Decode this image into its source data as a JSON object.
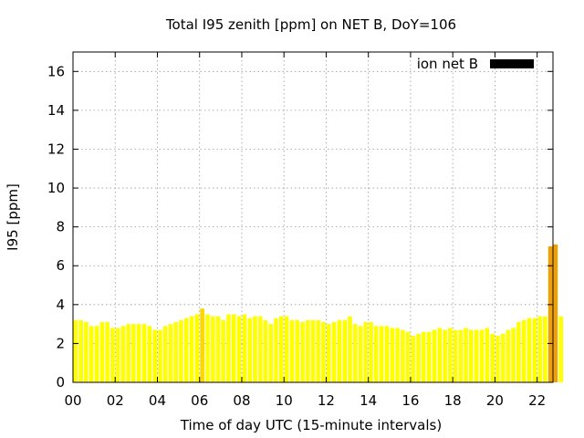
{
  "chart_data": {
    "type": "bar",
    "title": "Total I95 zenith [ppm] on NET B, DoY=106",
    "xlabel": "Time of day UTC (15-minute intervals)",
    "ylabel": "I95 [ppm]",
    "xlim": [
      0,
      22.75
    ],
    "ylim": [
      0,
      17
    ],
    "grid": true,
    "legend_position": "top-right",
    "x_ticks": [
      {
        "value": 0,
        "label": "00"
      },
      {
        "value": 2,
        "label": "02"
      },
      {
        "value": 4,
        "label": "04"
      },
      {
        "value": 6,
        "label": "06"
      },
      {
        "value": 8,
        "label": "08"
      },
      {
        "value": 10,
        "label": "10"
      },
      {
        "value": 12,
        "label": "12"
      },
      {
        "value": 14,
        "label": "14"
      },
      {
        "value": 16,
        "label": "16"
      },
      {
        "value": 18,
        "label": "18"
      },
      {
        "value": 20,
        "label": "20"
      },
      {
        "value": 22,
        "label": "22"
      }
    ],
    "y_ticks": [
      {
        "value": 0,
        "label": "0"
      },
      {
        "value": 2,
        "label": "2"
      },
      {
        "value": 4,
        "label": "4"
      },
      {
        "value": 6,
        "label": "6"
      },
      {
        "value": 8,
        "label": "8"
      },
      {
        "value": 10,
        "label": "10"
      },
      {
        "value": 12,
        "label": "12"
      },
      {
        "value": 14,
        "label": "14"
      },
      {
        "value": 16,
        "label": "16"
      }
    ],
    "series": [
      {
        "name": "ion net B",
        "legend_color": "#000000",
        "bar_width_hours": 0.2,
        "colors": {
          "normal": "#ffff00",
          "elevated": "#ffd700",
          "high": "#f0a000"
        },
        "x_start_hours": 0.125,
        "x_step_hours": 0.25,
        "values": [
          3.2,
          3.2,
          3.1,
          2.9,
          2.9,
          3.1,
          3.1,
          2.8,
          2.8,
          2.9,
          3.0,
          3.0,
          3.0,
          3.0,
          2.9,
          2.7,
          2.7,
          2.9,
          3.0,
          3.1,
          3.2,
          3.3,
          3.4,
          3.5,
          3.8,
          3.5,
          3.4,
          3.4,
          3.2,
          3.5,
          3.5,
          3.4,
          3.5,
          3.3,
          3.4,
          3.4,
          3.2,
          3.0,
          3.3,
          3.4,
          3.4,
          3.2,
          3.2,
          3.1,
          3.2,
          3.2,
          3.2,
          3.1,
          3.0,
          3.1,
          3.2,
          3.2,
          3.4,
          3.0,
          2.9,
          3.1,
          3.1,
          2.9,
          2.9,
          2.9,
          2.8,
          2.8,
          2.7,
          2.6,
          2.4,
          2.5,
          2.6,
          2.6,
          2.7,
          2.8,
          2.7,
          2.8,
          2.7,
          2.7,
          2.8,
          2.7,
          2.7,
          2.7,
          2.8,
          2.5,
          2.4,
          2.5,
          2.7,
          2.8,
          3.1,
          3.2,
          3.3,
          3.3,
          3.4,
          3.4,
          7.0,
          7.1,
          3.4
        ]
      }
    ]
  }
}
